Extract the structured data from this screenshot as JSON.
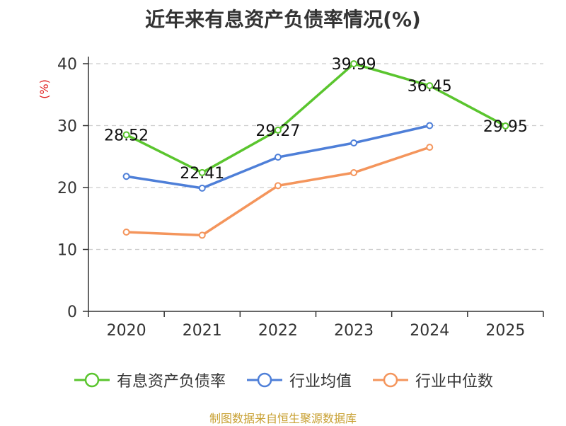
{
  "chart_data": {
    "type": "line",
    "title": "近年来有息资产负债率情况(%)",
    "ylabel": "(%)",
    "xlabel": "",
    "categories": [
      "2020",
      "2021",
      "2022",
      "2023",
      "2024",
      "2025"
    ],
    "ylim": [
      0,
      40
    ],
    "yticks": [
      0,
      10,
      20,
      30,
      40
    ],
    "grid": true,
    "legend_position": "bottom",
    "series": [
      {
        "name": "有息资产负债率",
        "color": "#5ac52e",
        "show_labels": true,
        "values": [
          28.52,
          22.41,
          29.27,
          39.99,
          36.45,
          29.95
        ]
      },
      {
        "name": "行业均值",
        "color": "#4e7fd8",
        "show_labels": false,
        "values": [
          21.8,
          19.9,
          24.9,
          27.2,
          30.0,
          null
        ]
      },
      {
        "name": "行业中位数",
        "color": "#f4955c",
        "show_labels": false,
        "values": [
          12.8,
          12.3,
          20.3,
          22.4,
          26.5,
          null
        ]
      }
    ]
  },
  "legend": {
    "items": [
      {
        "label": "有息资产负债率",
        "color": "#5ac52e"
      },
      {
        "label": "行业均值",
        "color": "#4e7fd8"
      },
      {
        "label": "行业中位数",
        "color": "#f4955c"
      }
    ]
  },
  "source": {
    "text": "制图数据来自恒生聚源数据库",
    "color": "#c8a032"
  },
  "colors": {
    "axis": "#333333",
    "grid": "#cccccc",
    "ylabel": "#e02020"
  }
}
